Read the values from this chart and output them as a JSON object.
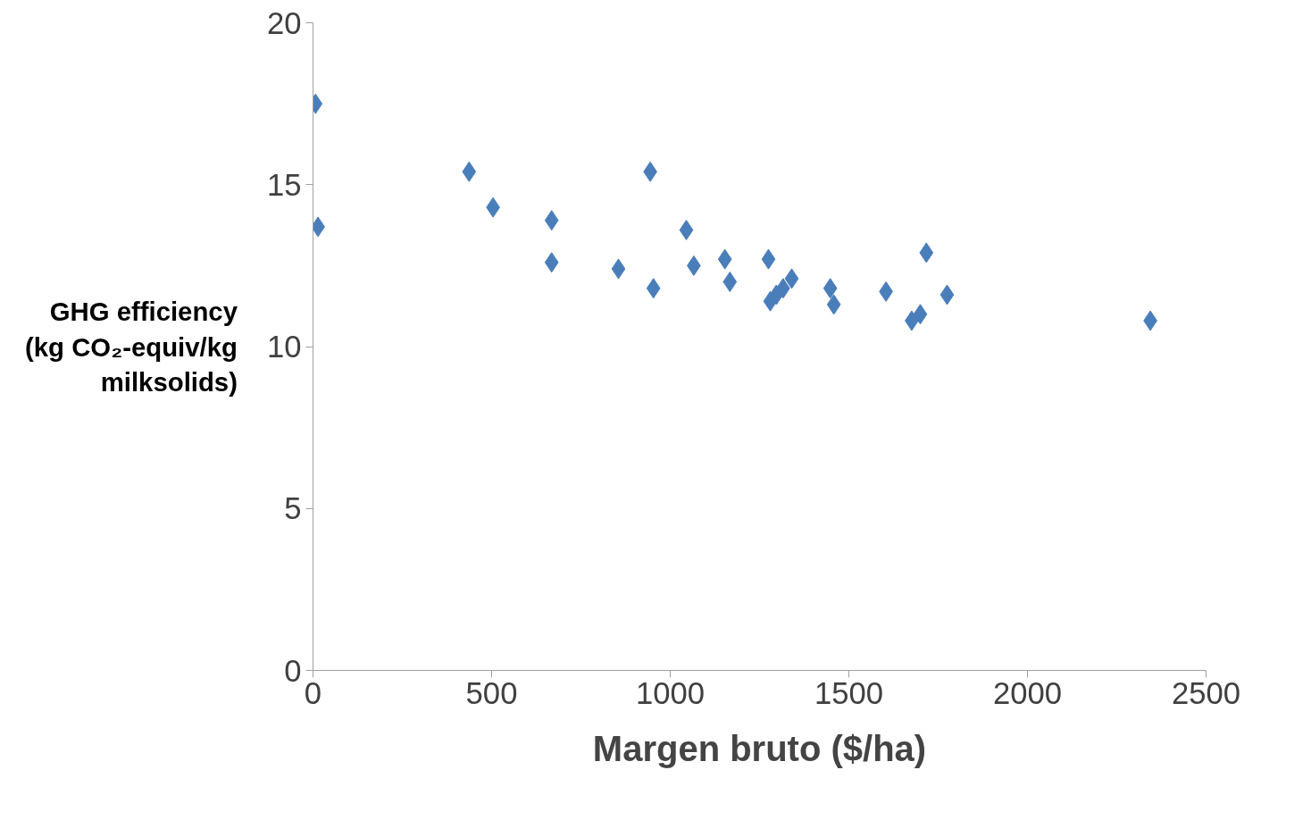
{
  "chart_data": {
    "type": "scatter",
    "xlabel": "Margen bruto ($/ha)",
    "ylabel": "GHG efficiency (kg CO₂-equiv/kg milksolids)",
    "x": [
      7,
      14,
      437,
      504,
      668,
      668,
      855,
      944,
      953,
      1045,
      1066,
      1153,
      1167,
      1275,
      1280,
      1297,
      1316,
      1340,
      1448,
      1458,
      1604,
      1676,
      1700,
      1717,
      1775,
      2344
    ],
    "series": [
      {
        "color": "#4a7ebb",
        "values": [
          17.5,
          13.7,
          15.4,
          14.3,
          13.9,
          12.6,
          12.4,
          15.4,
          11.8,
          13.6,
          12.5,
          12.7,
          12.0,
          12.7,
          11.4,
          11.6,
          11.8,
          12.1,
          11.8,
          11.3,
          11.7,
          10.8,
          11.0,
          12.9,
          11.6,
          10.8
        ]
      }
    ],
    "xlim": [
      0,
      2500
    ],
    "xticks": [
      0,
      500,
      1000,
      1500,
      2000,
      2500
    ],
    "ylim": [
      0,
      20
    ],
    "yticks": [
      0,
      5,
      10,
      15,
      20
    ],
    "marker": "diamond"
  }
}
